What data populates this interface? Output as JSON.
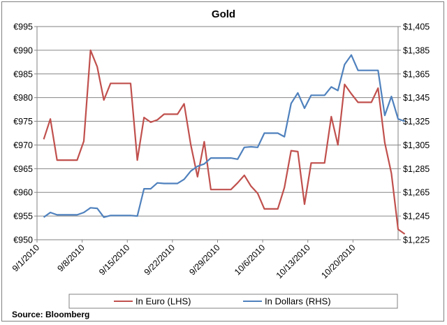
{
  "chart_data": {
    "type": "line",
    "title": "Gold",
    "source": "Source:  Bloomberg",
    "grid": true,
    "legend_position": "bottom",
    "x_tick_labels": [
      "9/1/2010",
      "9/8/2010",
      "9/15/2010",
      "9/22/2010",
      "9/29/2010",
      "10/6/2010",
      "10/13/2010",
      "10/20/2010"
    ],
    "y_left": {
      "label": "In Euro (LHS)",
      "ylim": [
        950,
        995
      ],
      "ticks": [
        "€950",
        "€955",
        "€960",
        "€965",
        "€970",
        "€975",
        "€980",
        "€985",
        "€990",
        "€995"
      ]
    },
    "y_right": {
      "label": "In Dollars (RHS)",
      "ylim": [
        1225,
        1405
      ],
      "ticks": [
        "$1,225",
        "$1,245",
        "$1,265",
        "$1,285",
        "$1,305",
        "$1,325",
        "$1,345",
        "$1,365",
        "$1,385",
        "$1,405"
      ]
    },
    "x_range": [
      "2010-08-31",
      "2010-10-24"
    ],
    "series": [
      {
        "name": "In Euro (LHS)",
        "axis": "left",
        "color": "#C0504D",
        "points": [
          [
            "2010-09-01",
            971.2
          ],
          [
            "2010-09-02",
            975.5
          ],
          [
            "2010-09-03",
            966.8
          ],
          [
            "2010-09-04",
            966.8
          ],
          [
            "2010-09-05",
            966.8
          ],
          [
            "2010-09-06",
            966.8
          ],
          [
            "2010-09-07",
            970.8
          ],
          [
            "2010-09-08",
            990.0
          ],
          [
            "2010-09-09",
            986.5
          ],
          [
            "2010-09-10",
            979.5
          ],
          [
            "2010-09-11",
            983.0
          ],
          [
            "2010-09-12",
            983.0
          ],
          [
            "2010-09-13",
            983.0
          ],
          [
            "2010-09-14",
            983.0
          ],
          [
            "2010-09-15",
            966.8
          ],
          [
            "2010-09-16",
            975.8
          ],
          [
            "2010-09-17",
            974.8
          ],
          [
            "2010-09-18",
            975.3
          ],
          [
            "2010-09-19",
            976.5
          ],
          [
            "2010-09-20",
            976.5
          ],
          [
            "2010-09-21",
            976.5
          ],
          [
            "2010-09-22",
            978.7
          ],
          [
            "2010-09-23",
            970.0
          ],
          [
            "2010-09-24",
            963.3
          ],
          [
            "2010-09-25",
            970.7
          ],
          [
            "2010-09-26",
            960.6
          ],
          [
            "2010-09-27",
            960.6
          ],
          [
            "2010-09-28",
            960.6
          ],
          [
            "2010-09-29",
            960.6
          ],
          [
            "2010-09-30",
            962.0
          ],
          [
            "2010-10-01",
            963.6
          ],
          [
            "2010-10-02",
            961.3
          ],
          [
            "2010-10-03",
            959.8
          ],
          [
            "2010-10-04",
            956.5
          ],
          [
            "2010-10-05",
            956.5
          ],
          [
            "2010-10-06",
            956.5
          ],
          [
            "2010-10-07",
            961.0
          ],
          [
            "2010-10-08",
            968.8
          ],
          [
            "2010-10-09",
            968.6
          ],
          [
            "2010-10-10",
            957.5
          ],
          [
            "2010-10-11",
            966.2
          ],
          [
            "2010-10-12",
            966.2
          ],
          [
            "2010-10-13",
            966.2
          ],
          [
            "2010-10-14",
            976.0
          ],
          [
            "2010-10-15",
            970.0
          ],
          [
            "2010-10-16",
            982.8
          ],
          [
            "2010-10-17",
            980.8
          ],
          [
            "2010-10-18",
            979.0
          ],
          [
            "2010-10-19",
            979.0
          ],
          [
            "2010-10-20",
            979.0
          ],
          [
            "2010-10-21",
            982.0
          ],
          [
            "2010-10-22",
            970.5
          ],
          [
            "2010-10-23",
            964.0
          ],
          [
            "2010-10-24",
            952.2
          ],
          [
            "2010-10-25",
            951.2
          ]
        ]
      },
      {
        "name": "In Dollars (RHS)",
        "axis": "right",
        "color": "#4F81BD",
        "points": [
          [
            "2010-09-01",
            1244
          ],
          [
            "2010-09-02",
            1248
          ],
          [
            "2010-09-03",
            1246
          ],
          [
            "2010-09-04",
            1246
          ],
          [
            "2010-09-05",
            1246
          ],
          [
            "2010-09-06",
            1246
          ],
          [
            "2010-09-07",
            1248
          ],
          [
            "2010-09-08",
            1252
          ],
          [
            "2010-09-09",
            1251.5
          ],
          [
            "2010-09-10",
            1244
          ],
          [
            "2010-09-11",
            1245.5
          ],
          [
            "2010-09-12",
            1245.5
          ],
          [
            "2010-09-13",
            1245.5
          ],
          [
            "2010-09-14",
            1245.5
          ],
          [
            "2010-09-15",
            1245
          ],
          [
            "2010-09-16",
            1268
          ],
          [
            "2010-09-17",
            1268
          ],
          [
            "2010-09-18",
            1273
          ],
          [
            "2010-09-19",
            1272.5
          ],
          [
            "2010-09-20",
            1272.5
          ],
          [
            "2010-09-21",
            1272.5
          ],
          [
            "2010-09-22",
            1276
          ],
          [
            "2010-09-23",
            1283
          ],
          [
            "2010-09-24",
            1287
          ],
          [
            "2010-09-25",
            1289
          ],
          [
            "2010-09-26",
            1294
          ],
          [
            "2010-09-27",
            1294
          ],
          [
            "2010-09-28",
            1294
          ],
          [
            "2010-09-29",
            1294
          ],
          [
            "2010-09-30",
            1293
          ],
          [
            "2010-10-01",
            1303
          ],
          [
            "2010-10-02",
            1303.5
          ],
          [
            "2010-10-03",
            1303
          ],
          [
            "2010-10-04",
            1315
          ],
          [
            "2010-10-05",
            1315
          ],
          [
            "2010-10-06",
            1315
          ],
          [
            "2010-10-07",
            1312
          ],
          [
            "2010-10-08",
            1340
          ],
          [
            "2010-10-09",
            1349
          ],
          [
            "2010-10-10",
            1336
          ],
          [
            "2010-10-11",
            1347
          ],
          [
            "2010-10-12",
            1347
          ],
          [
            "2010-10-13",
            1347
          ],
          [
            "2010-10-14",
            1354
          ],
          [
            "2010-10-15",
            1351
          ],
          [
            "2010-10-16",
            1373
          ],
          [
            "2010-10-17",
            1381
          ],
          [
            "2010-10-18",
            1368
          ],
          [
            "2010-10-19",
            1368
          ],
          [
            "2010-10-20",
            1368
          ],
          [
            "2010-10-21",
            1368
          ],
          [
            "2010-10-22",
            1330
          ],
          [
            "2010-10-23",
            1346
          ],
          [
            "2010-10-24",
            1327
          ],
          [
            "2010-10-25",
            1325
          ]
        ]
      }
    ]
  }
}
